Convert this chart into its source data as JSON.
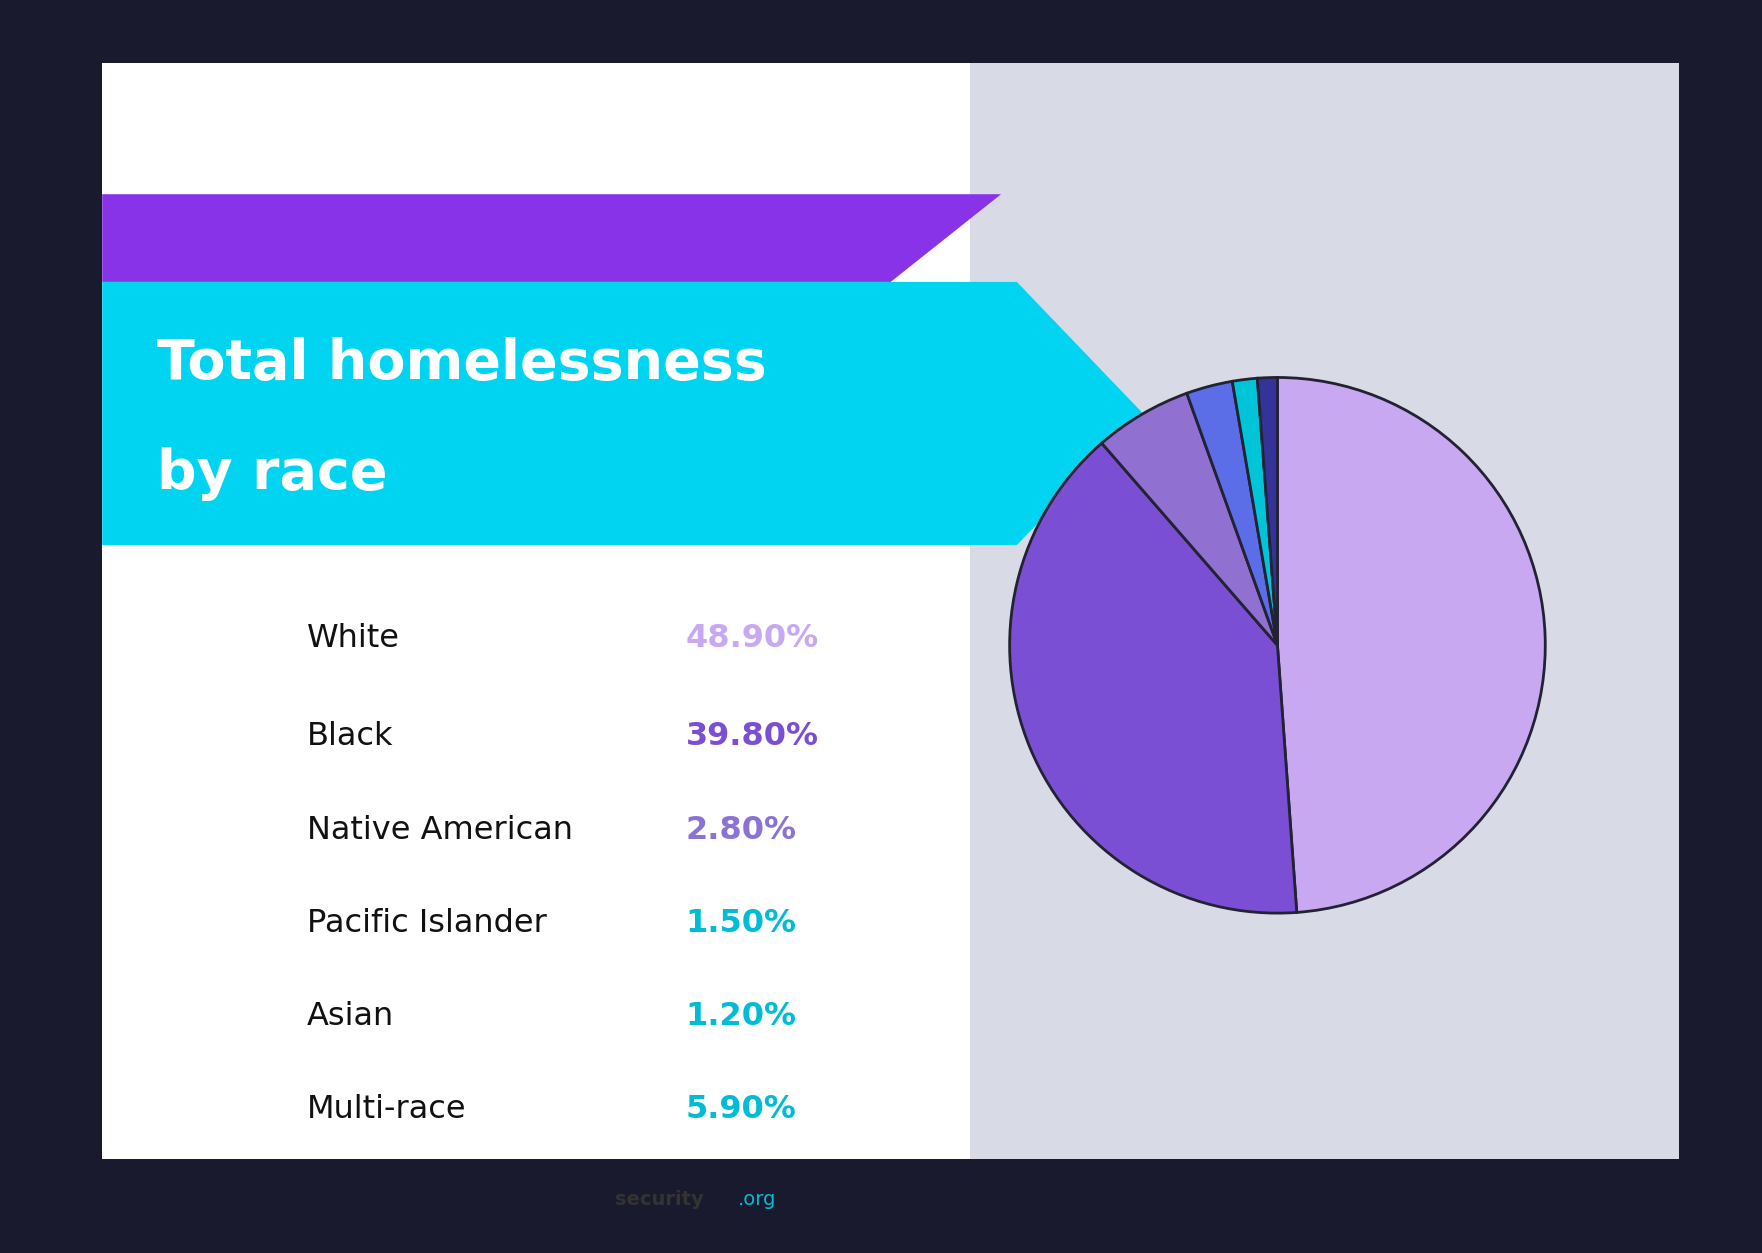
{
  "title_line1": "Total homelessness",
  "title_line2": "by race",
  "categories": [
    "White",
    "Black",
    "Native American",
    "Pacific Islander",
    "Asian",
    "Multi-race"
  ],
  "value_labels": [
    "48.90%",
    "39.80%",
    "2.80%",
    "1.50%",
    "1.20%",
    "5.90%"
  ],
  "value_colors": [
    "#c8a8f0",
    "#7b4fd4",
    "#8b72d4",
    "#00bcd4",
    "#00bcd4",
    "#00bcd4"
  ],
  "pie_values": [
    48.9,
    39.8,
    5.9,
    2.8,
    1.5,
    1.2
  ],
  "pie_colors": [
    "#c8a8f0",
    "#7b4fd4",
    "#9070d0",
    "#5b6ee8",
    "#00c4d8",
    "#333399"
  ],
  "bg_outer": "#1a1a2e",
  "bg_card": "#ffffff",
  "bg_gray_right": "#d8dae8",
  "cyan_color": "#00d4f0",
  "purple_color": "#8833e8",
  "title_color": "#ffffff",
  "label_color": "#111111",
  "edge_color": "#222233",
  "edge_lw": 2.0,
  "logo_color": "#333333",
  "logo_org_color": "#00bcd4",
  "logo_bar_color": "#4488ee"
}
